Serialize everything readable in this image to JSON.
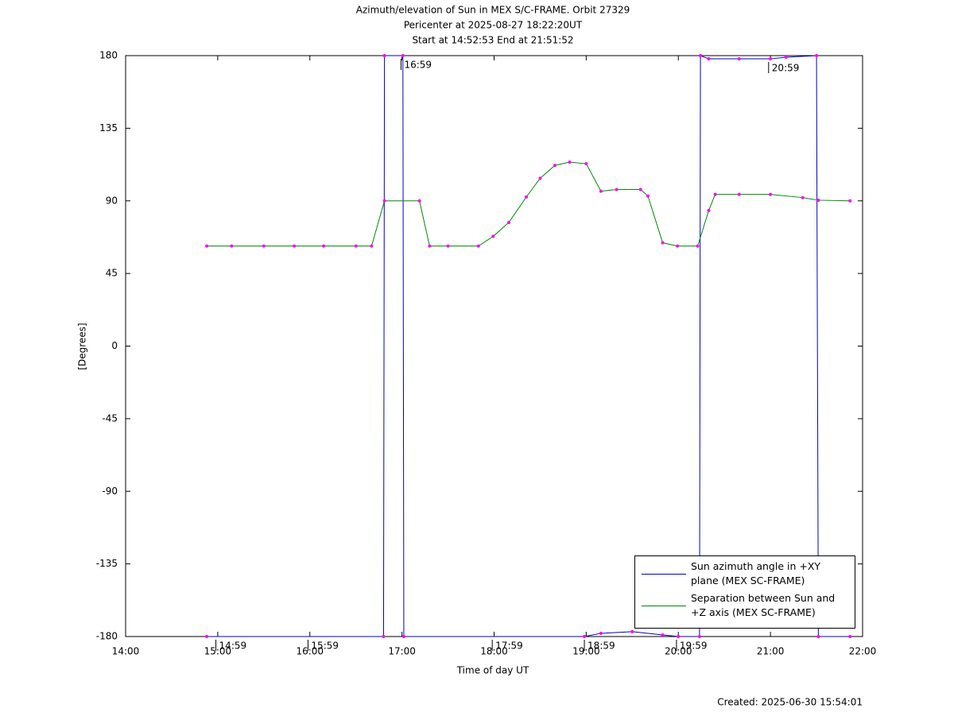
{
  "chart_data": {
    "type": "line",
    "title": "Azimuth/elevation of Sun in MEX S/C-FRAME.  Orbit 27329",
    "subtitle": "Pericenter at 2025-08-27 18:22:20UT",
    "subtitle2": "Start at 14:52:53 End at 21:51:52",
    "x_label": "Time of day UT",
    "y_label": "[Degrees]",
    "footer": "Created: 2025-06-30 15:54:01",
    "xlim": [
      14,
      22
    ],
    "xticks": [
      {
        "value": 14,
        "label": "14:00"
      },
      {
        "value": 15,
        "label": "15:00"
      },
      {
        "value": 16,
        "label": "16:00"
      },
      {
        "value": 17,
        "label": "17:00"
      },
      {
        "value": 18,
        "label": "18:00"
      },
      {
        "value": 19,
        "label": "19:00"
      },
      {
        "value": 20,
        "label": "20:00"
      },
      {
        "value": 21,
        "label": "21:00"
      },
      {
        "value": 22,
        "label": "22:00"
      }
    ],
    "ylim": [
      -180,
      180
    ],
    "yticks": [
      180,
      135,
      90,
      45,
      0,
      -45,
      -90,
      -135,
      -180
    ],
    "grid": false,
    "legend": "lower right",
    "marker_color": "#ff00ff",
    "series": [
      {
        "name": "Sun azimuth angle in +XY plane (MEX SC-FRAME)",
        "color": "#0000cc",
        "x": [
          14.881,
          16.8,
          16.81,
          17.01,
          17.02,
          18.98,
          19.16,
          19.5,
          19.83,
          20.0,
          20.23,
          20.24,
          20.33,
          20.66,
          21.0,
          21.17,
          21.5,
          21.52,
          21.864
        ],
        "values": [
          -180,
          -180,
          180,
          180,
          -180,
          -180,
          -178,
          -177,
          -179,
          -180,
          -180,
          180,
          178,
          178,
          178,
          179,
          180,
          -180,
          -180
        ]
      },
      {
        "name": "Separation between Sun and +Z axis (MEX SC-FRAME)",
        "color": "#008800",
        "x": [
          14.881,
          15.15,
          15.5,
          15.83,
          16.15,
          16.5,
          16.67,
          16.81,
          17.19,
          17.3,
          17.5,
          17.83,
          17.99,
          18.16,
          18.35,
          18.5,
          18.66,
          18.82,
          19.0,
          19.16,
          19.33,
          19.59,
          19.67,
          19.83,
          19.99,
          20.21,
          20.33,
          20.4,
          20.66,
          21.0,
          21.35,
          21.52,
          21.864
        ],
        "values": [
          62,
          62,
          62,
          62,
          62,
          62,
          62,
          90,
          90,
          62,
          62,
          62,
          68,
          76.6,
          92.4,
          104,
          112,
          114,
          113,
          96,
          97,
          97,
          93,
          64,
          62,
          62,
          84,
          94,
          94,
          94,
          92,
          90.4,
          90
        ]
      }
    ],
    "annotations": [
      {
        "text": "14:59",
        "x": 14.98,
        "y": -180
      },
      {
        "text": "15:59",
        "x": 15.98,
        "y": -180
      },
      {
        "text": "16:59",
        "x": 16.99,
        "y": 180
      },
      {
        "text": "17:59",
        "x": 17.98,
        "y": -180
      },
      {
        "text": "18:59",
        "x": 18.98,
        "y": -180
      },
      {
        "text": "19:59",
        "x": 19.98,
        "y": -180
      },
      {
        "text": "20:59",
        "x": 20.98,
        "y": 178
      }
    ]
  }
}
